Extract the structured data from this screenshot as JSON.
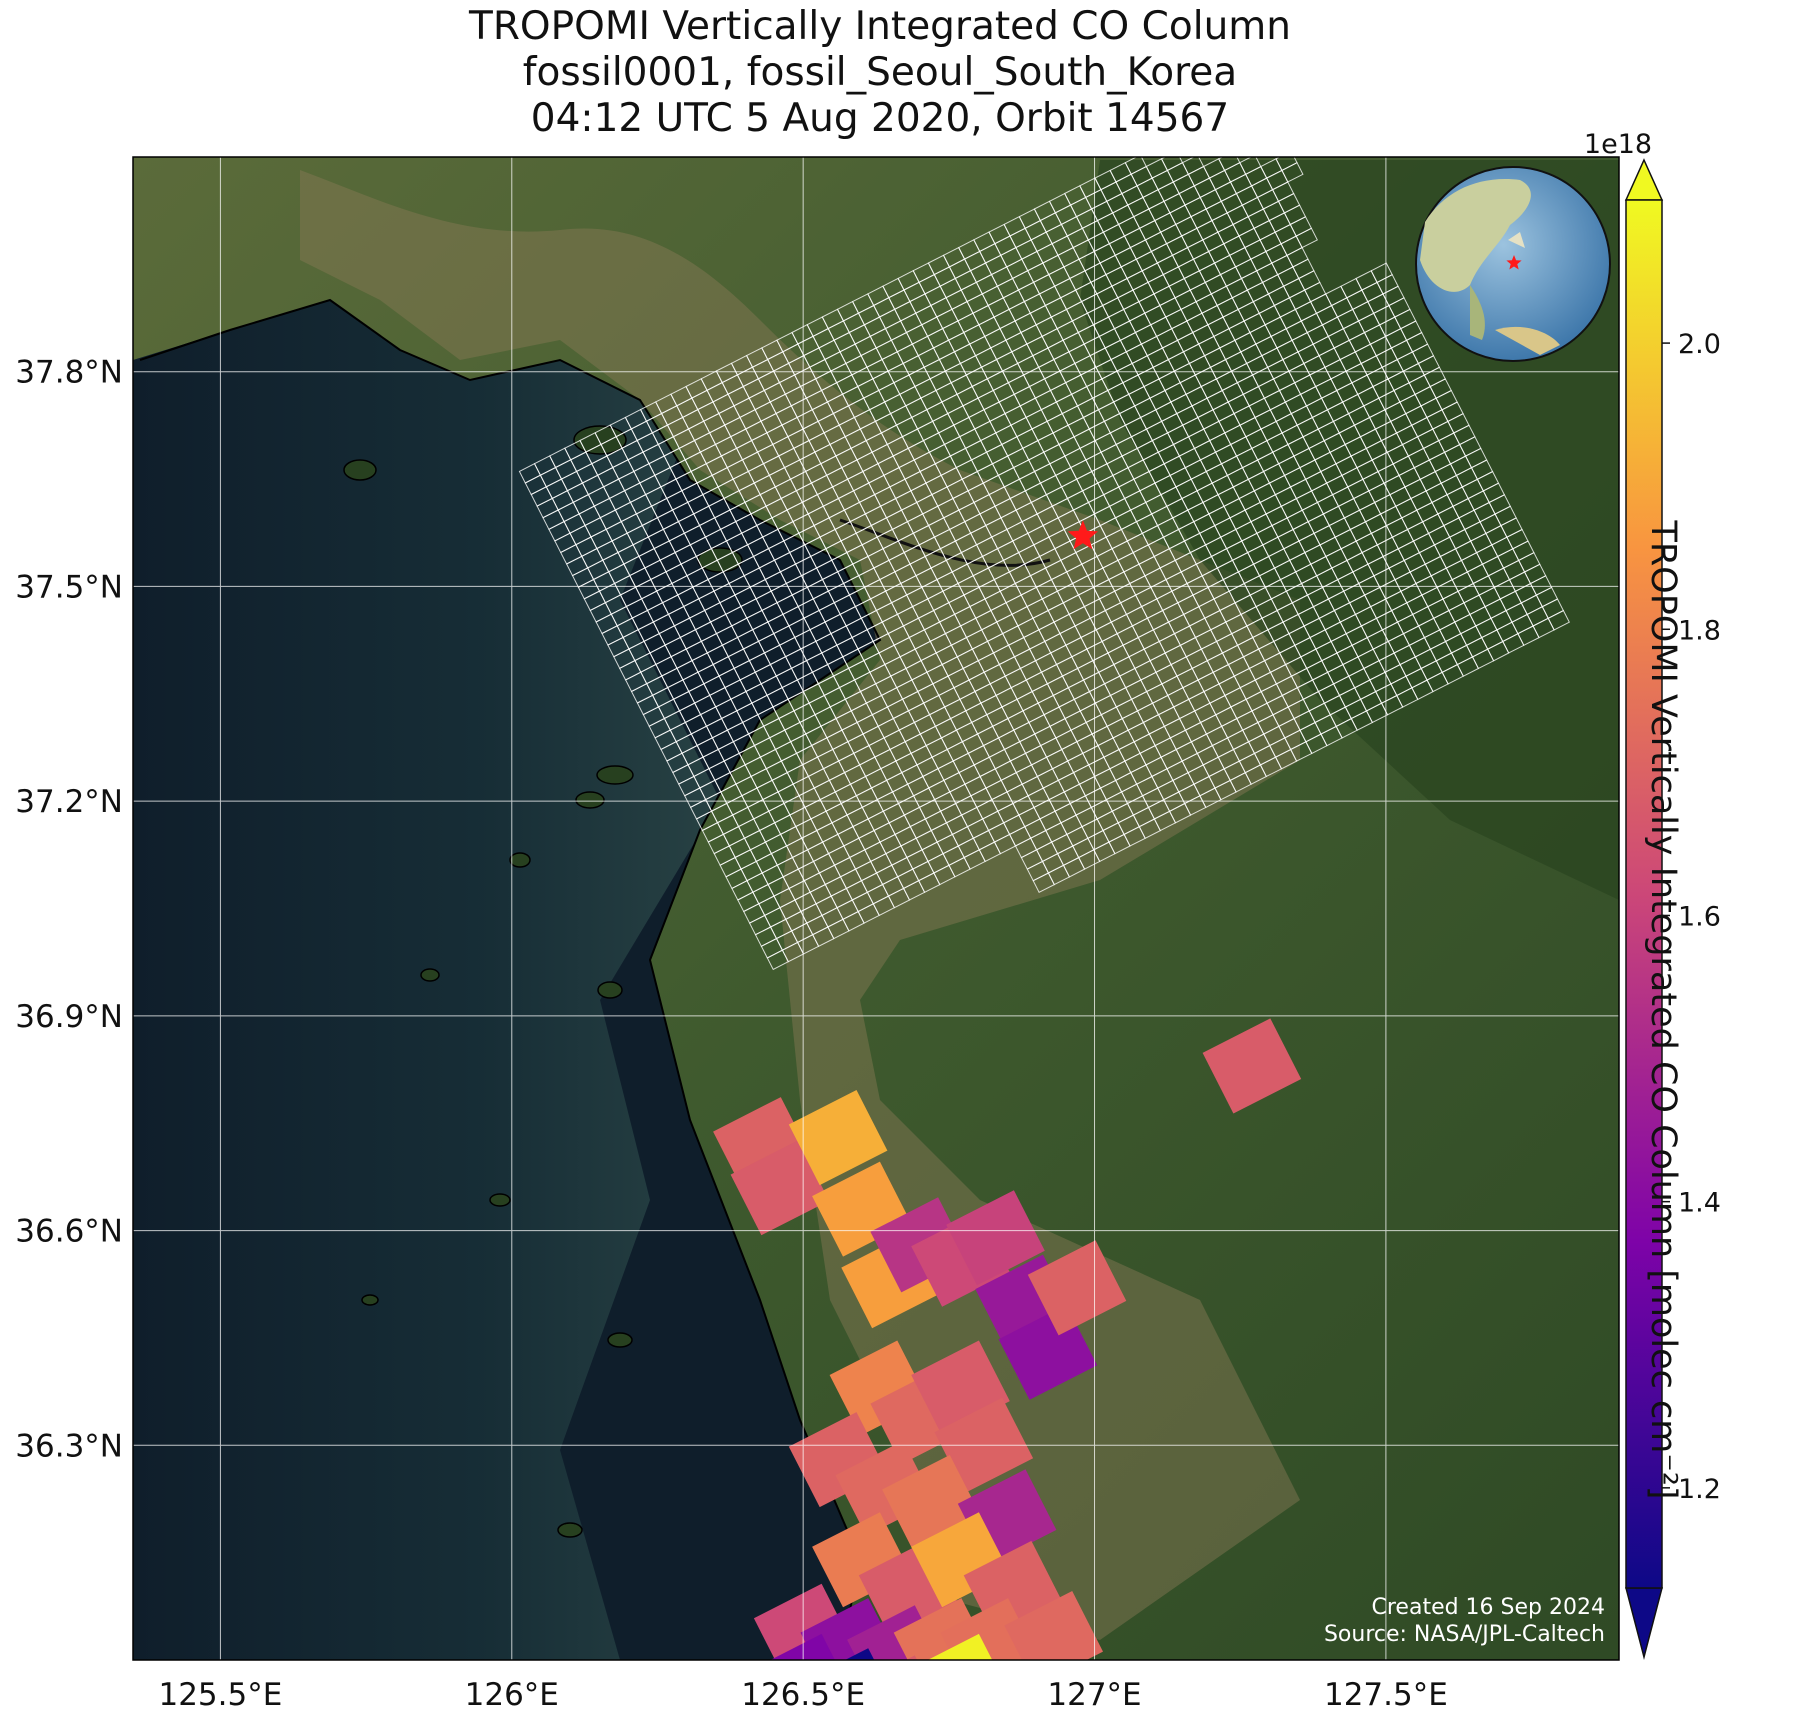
{
  "title": {
    "line1": "TROPOMI Vertically Integrated CO Column",
    "line2": "fossil0001, fossil_Seoul_South_Korea",
    "line3": "04:12 UTC 5 Aug 2020, Orbit 14567"
  },
  "axes": {
    "lon_ticks": [
      "125.5°E",
      "126°E",
      "126.5°E",
      "127°E",
      "127.5°E"
    ],
    "lat_ticks": [
      "37.8°N",
      "37.5°N",
      "37.2°N",
      "36.9°N",
      "36.6°N",
      "36.3°N"
    ]
  },
  "colorbar": {
    "label": "TROPOMI Vertically Integrated CO Column [molec cm⁻²]",
    "scale_label": "1e18",
    "ticks": [
      "2.0",
      "1.8",
      "1.6",
      "1.4",
      "1.2"
    ],
    "colormap": "plasma",
    "range": [
      1.13,
      2.1
    ]
  },
  "credits": {
    "created": "Created 16 Sep 2024",
    "source": "Source: NASA/JPL-Caltech"
  },
  "colors": {
    "ocean": "#0f1e2b",
    "target_marker": "#ff1a1a",
    "grid_overlay": "#ffffff"
  },
  "chart_data": {
    "type": "heatmap",
    "xlabel": "",
    "ylabel": "",
    "xlim": [
      125.35,
      127.9
    ],
    "ylim": [
      36.0,
      38.1
    ],
    "target": {
      "name": "fossil_Seoul_South_Korea",
      "lon": 126.98,
      "lat": 37.57
    },
    "values_unit": "1e18 molec cm^-2",
    "pixels": [
      {
        "lon": 126.43,
        "lat": 36.72,
        "value": 1.7
      },
      {
        "lon": 126.46,
        "lat": 36.66,
        "value": 1.68
      },
      {
        "lon": 126.56,
        "lat": 36.73,
        "value": 1.92
      },
      {
        "lon": 126.6,
        "lat": 36.63,
        "value": 1.88
      },
      {
        "lon": 126.65,
        "lat": 36.53,
        "value": 1.88
      },
      {
        "lon": 126.7,
        "lat": 36.58,
        "value": 1.55
      },
      {
        "lon": 126.77,
        "lat": 36.56,
        "value": 1.62
      },
      {
        "lon": 126.83,
        "lat": 36.59,
        "value": 1.6
      },
      {
        "lon": 126.88,
        "lat": 36.5,
        "value": 1.45
      },
      {
        "lon": 126.92,
        "lat": 36.43,
        "value": 1.42
      },
      {
        "lon": 126.97,
        "lat": 36.52,
        "value": 1.7
      },
      {
        "lon": 126.63,
        "lat": 36.38,
        "value": 1.8
      },
      {
        "lon": 126.7,
        "lat": 36.34,
        "value": 1.72
      },
      {
        "lon": 126.77,
        "lat": 36.38,
        "value": 1.68
      },
      {
        "lon": 126.81,
        "lat": 36.3,
        "value": 1.7
      },
      {
        "lon": 126.56,
        "lat": 36.28,
        "value": 1.7
      },
      {
        "lon": 126.64,
        "lat": 36.24,
        "value": 1.72
      },
      {
        "lon": 126.72,
        "lat": 36.22,
        "value": 1.76
      },
      {
        "lon": 126.85,
        "lat": 36.2,
        "value": 1.5
      },
      {
        "lon": 126.6,
        "lat": 36.14,
        "value": 1.78
      },
      {
        "lon": 126.68,
        "lat": 36.1,
        "value": 1.68
      },
      {
        "lon": 126.77,
        "lat": 36.14,
        "value": 1.9
      },
      {
        "lon": 126.86,
        "lat": 36.1,
        "value": 1.7
      },
      {
        "lon": 126.5,
        "lat": 36.04,
        "value": 1.62
      },
      {
        "lon": 126.58,
        "lat": 36.02,
        "value": 1.42
      },
      {
        "lon": 126.66,
        "lat": 36.01,
        "value": 1.48
      },
      {
        "lon": 126.74,
        "lat": 36.02,
        "value": 1.75
      },
      {
        "lon": 126.82,
        "lat": 36.02,
        "value": 1.74
      },
      {
        "lon": 126.5,
        "lat": 35.97,
        "value": 1.38
      },
      {
        "lon": 126.58,
        "lat": 35.95,
        "value": 1.13
      },
      {
        "lon": 126.66,
        "lat": 35.94,
        "value": 1.68
      },
      {
        "lon": 126.77,
        "lat": 35.97,
        "value": 2.08
      },
      {
        "lon": 126.83,
        "lat": 35.93,
        "value": 1.92
      },
      {
        "lon": 126.93,
        "lat": 36.03,
        "value": 1.72
      },
      {
        "lon": 127.27,
        "lat": 36.83,
        "value": 1.68
      }
    ]
  }
}
